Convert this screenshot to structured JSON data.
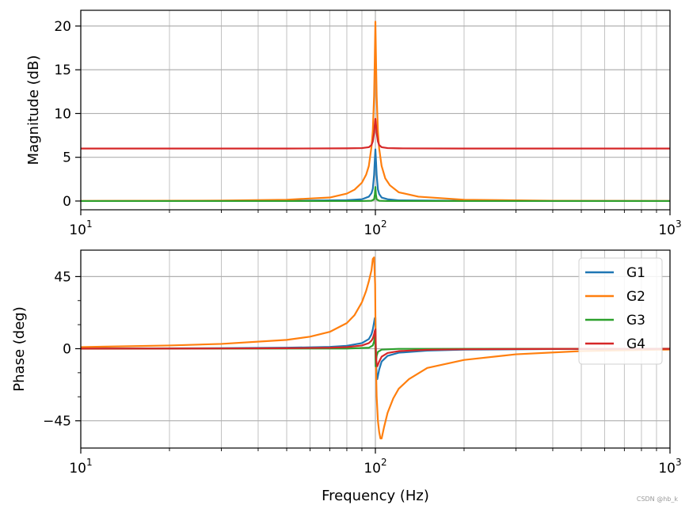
{
  "chart_data": [
    {
      "type": "line",
      "name": "magnitude",
      "xscale": "log",
      "xlim": [
        10,
        1000
      ],
      "ylim": [
        -1,
        21.8
      ],
      "xlabel": "",
      "ylabel": "Magnitude (dB)",
      "xticks": [
        {
          "value": 10,
          "base": "10",
          "exp": "1"
        },
        {
          "value": 100,
          "base": "10",
          "exp": "2"
        },
        {
          "value": 1000,
          "base": "10",
          "exp": "3"
        }
      ],
      "yticks": [
        {
          "value": 0,
          "label": "0"
        },
        {
          "value": 5,
          "label": "5"
        },
        {
          "value": 10,
          "label": "10"
        },
        {
          "value": 15,
          "label": "15"
        },
        {
          "value": 20,
          "label": "20"
        }
      ],
      "grid": true,
      "series": [
        {
          "name": "G1",
          "color": "#1f77b4",
          "x": [
            10,
            50,
            80,
            90,
            95,
            97,
            98,
            99,
            99.5,
            100,
            100.5,
            101,
            102,
            103,
            105,
            110,
            120,
            200,
            1000
          ],
          "values": [
            0,
            0.02,
            0.1,
            0.2,
            0.5,
            0.9,
            1.4,
            3.0,
            4.5,
            5.9,
            4.5,
            3.0,
            1.3,
            0.8,
            0.4,
            0.2,
            0.08,
            0.02,
            0
          ]
        },
        {
          "name": "G2",
          "color": "#ff7f0e",
          "x": [
            10,
            30,
            50,
            70,
            80,
            85,
            90,
            93,
            95,
            97,
            98,
            99,
            99.5,
            100,
            100.5,
            101,
            102,
            103,
            105,
            108,
            112,
            120,
            140,
            200,
            400,
            1000
          ],
          "values": [
            0.01,
            0.05,
            0.15,
            0.4,
            0.85,
            1.3,
            2.1,
            3.0,
            4.0,
            6.2,
            8.0,
            12.0,
            16.0,
            20.5,
            16.0,
            12.0,
            8.0,
            6.0,
            4.0,
            2.6,
            1.8,
            1.0,
            0.5,
            0.15,
            0.03,
            0.01
          ]
        },
        {
          "name": "G3",
          "color": "#2ca02c",
          "x": [
            10,
            90,
            97,
            99,
            99.6,
            100,
            100.4,
            101,
            103,
            110,
            1000
          ],
          "values": [
            0,
            0,
            0.03,
            0.2,
            0.8,
            1.6,
            0.8,
            0.2,
            0.03,
            0,
            0
          ]
        },
        {
          "name": "G4",
          "color": "#d62728",
          "x": [
            10,
            50,
            80,
            90,
            95,
            97,
            98,
            99,
            99.5,
            100,
            100.5,
            101,
            102,
            103,
            105,
            110,
            120,
            200,
            1000
          ],
          "values": [
            6.0,
            6.0,
            6.02,
            6.05,
            6.15,
            6.4,
            6.8,
            7.8,
            8.7,
            9.4,
            8.7,
            7.8,
            6.8,
            6.4,
            6.15,
            6.05,
            6.02,
            6.0,
            6.0
          ]
        }
      ]
    },
    {
      "type": "line",
      "name": "phase",
      "xscale": "log",
      "xlim": [
        10,
        1000
      ],
      "ylim": [
        -62,
        61.5
      ],
      "xlabel": "Frequency (Hz)",
      "ylabel": "Phase (deg)",
      "xticks": [
        {
          "value": 10,
          "base": "10",
          "exp": "1"
        },
        {
          "value": 100,
          "base": "10",
          "exp": "2"
        },
        {
          "value": 1000,
          "base": "10",
          "exp": "3"
        }
      ],
      "yticks": [
        {
          "value": 45,
          "label": "45"
        },
        {
          "value": 0,
          "label": "0"
        },
        {
          "value": -45,
          "label": "−45"
        }
      ],
      "minor_yticks": [
        -30,
        -15,
        15,
        30
      ],
      "grid": true,
      "legend_position": "top-right",
      "series": [
        {
          "name": "G1",
          "color": "#1f77b4",
          "x": [
            10,
            30,
            50,
            70,
            80,
            90,
            95,
            97,
            98,
            99,
            99.5,
            100,
            100.5,
            101,
            101.5,
            102,
            103,
            105,
            110,
            120,
            150,
            200,
            400,
            1000
          ],
          "values": [
            0.1,
            0.3,
            0.6,
            1.1,
            1.8,
            3.5,
            6.0,
            9.0,
            12.0,
            16.5,
            19.0,
            19.5,
            -8.0,
            -16.0,
            -19.0,
            -17.0,
            -13.0,
            -8.0,
            -4.5,
            -2.5,
            -1.2,
            -0.6,
            -0.2,
            -0.1
          ]
        },
        {
          "name": "G2",
          "color": "#ff7f0e",
          "x": [
            10,
            20,
            30,
            50,
            60,
            70,
            80,
            85,
            90,
            93,
            95,
            97,
            98,
            99,
            99.8,
            100.3,
            101,
            102,
            103,
            104,
            105,
            107,
            110,
            115,
            120,
            130,
            150,
            200,
            300,
            500,
            1000
          ],
          "values": [
            1.0,
            2.0,
            3.0,
            5.5,
            7.5,
            10.5,
            16.0,
            21.0,
            29.0,
            36.0,
            42.0,
            49.0,
            56.0,
            57.0,
            40.0,
            -5.0,
            -30.0,
            -45.0,
            -52.0,
            -56.0,
            -56.0,
            -49.0,
            -40.0,
            -31.0,
            -25.0,
            -19.0,
            -12.0,
            -7.0,
            -3.5,
            -1.5,
            -0.5
          ]
        },
        {
          "name": "G3",
          "color": "#2ca02c",
          "x": [
            10,
            80,
            95,
            98,
            99,
            99.5,
            99.8,
            100,
            100.2,
            100.5,
            101,
            102,
            105,
            120,
            1000
          ],
          "values": [
            0,
            0.1,
            0.6,
            2.0,
            4.5,
            8.0,
            11.0,
            0,
            -11.0,
            -8.0,
            -4.5,
            -2.0,
            -0.6,
            -0.1,
            0
          ]
        },
        {
          "name": "G4",
          "color": "#d62728",
          "x": [
            10,
            30,
            50,
            70,
            80,
            90,
            95,
            97,
            98,
            99,
            99.5,
            100,
            100.5,
            101,
            101.5,
            102,
            103,
            105,
            110,
            120,
            150,
            200,
            400,
            1000
          ],
          "values": [
            0.05,
            0.15,
            0.3,
            0.6,
            1.0,
            2.0,
            3.5,
            5.0,
            6.5,
            9.0,
            11.0,
            12.0,
            -5.0,
            -9.5,
            -11.0,
            -10.0,
            -8.0,
            -5.0,
            -2.7,
            -1.5,
            -0.7,
            -0.35,
            -0.12,
            -0.05
          ]
        }
      ]
    }
  ],
  "watermark": "CSDN @hb_k"
}
